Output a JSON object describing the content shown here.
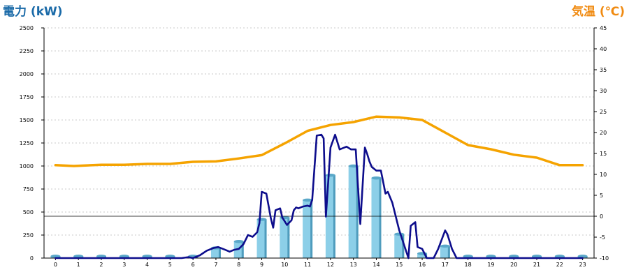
{
  "chart_data": {
    "type": "bar+line",
    "left_axis": {
      "label": "電力 (kW)",
      "color": "#1a6aa8",
      "min": 0,
      "max": 2500,
      "ticks": [
        0,
        250,
        500,
        750,
        1000,
        1250,
        1500,
        1750,
        2000,
        2250,
        2500
      ]
    },
    "right_axis": {
      "label": "気温 (℃)",
      "color": "#f08a10",
      "min": -10,
      "max": 45,
      "ticks": [
        -10,
        -5,
        0,
        5,
        10,
        15,
        20,
        25,
        30,
        35,
        40,
        45
      ]
    },
    "categories": [
      "0",
      "1",
      "2",
      "3",
      "4",
      "5",
      "6",
      "7",
      "8",
      "9",
      "10",
      "11",
      "12",
      "13",
      "14",
      "15",
      "16",
      "17",
      "18",
      "19",
      "20",
      "21",
      "22",
      "23"
    ],
    "grid": true,
    "bars": {
      "axis": "left",
      "color": "#8ccfe8",
      "values": [
        20,
        20,
        20,
        20,
        20,
        20,
        20,
        110,
        180,
        420,
        440,
        630,
        900,
        1000,
        870,
        260,
        50,
        130,
        20,
        20,
        20,
        20,
        20,
        20
      ]
    },
    "temperature_line": {
      "axis": "right",
      "color": "#f5a300",
      "x": [
        0,
        0.8,
        2,
        3,
        4,
        5,
        6,
        7,
        8,
        9,
        10,
        11,
        12,
        13,
        14,
        15,
        16,
        17,
        18,
        19,
        20,
        21,
        22,
        23
      ],
      "y": [
        12.2,
        12.0,
        12.3,
        12.3,
        12.5,
        12.5,
        13.0,
        13.1,
        13.8,
        14.6,
        17.4,
        20.4,
        21.8,
        22.5,
        23.8,
        23.6,
        23.0,
        20.0,
        17.0,
        16.0,
        14.7,
        14.0,
        12.2,
        12.2
      ]
    },
    "power_line": {
      "axis": "left",
      "color": "#0d0d8c",
      "x": [
        0,
        5.5,
        5.8,
        6.0,
        6.3,
        6.6,
        6.9,
        7.1,
        7.4,
        7.6,
        7.8,
        8.0,
        8.2,
        8.4,
        8.6,
        8.8,
        8.9,
        9.0,
        9.2,
        9.4,
        9.5,
        9.6,
        9.8,
        9.9,
        10.1,
        10.3,
        10.4,
        10.5,
        10.6,
        10.8,
        11.0,
        11.1,
        11.2,
        11.4,
        11.6,
        11.7,
        11.8,
        12.0,
        12.2,
        12.4,
        12.7,
        12.9,
        13.1,
        13.3,
        13.5,
        13.6,
        13.7,
        13.8,
        14.0,
        14.2,
        14.4,
        14.5,
        14.7,
        15.0,
        15.4,
        15.5,
        15.7,
        15.8,
        16.0,
        16.2,
        16.5,
        16.7,
        17.0,
        17.1,
        17.3,
        17.5,
        17.7,
        18,
        23
      ],
      "y": [
        0,
        0,
        10,
        0,
        30,
        80,
        110,
        120,
        90,
        70,
        90,
        100,
        150,
        250,
        230,
        280,
        380,
        720,
        700,
        430,
        330,
        520,
        540,
        440,
        360,
        410,
        520,
        550,
        540,
        560,
        570,
        560,
        630,
        1330,
        1340,
        1300,
        450,
        1200,
        1340,
        1180,
        1210,
        1180,
        1180,
        370,
        1200,
        1130,
        1050,
        990,
        950,
        950,
        700,
        720,
        600,
        300,
        0,
        350,
        390,
        120,
        100,
        0,
        0,
        100,
        300,
        260,
        100,
        0,
        0,
        0,
        0
      ]
    }
  }
}
